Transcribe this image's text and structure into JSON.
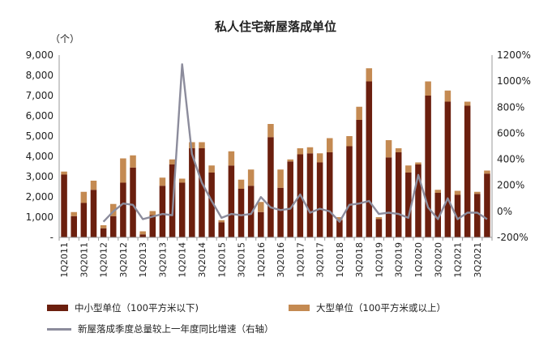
{
  "chart_data": {
    "type": "bar",
    "title": "私人住宅新屋落成单位",
    "y_unit": "（个）",
    "ylim": [
      0,
      9000
    ],
    "yticks": [
      "-",
      "1,000",
      "2,000",
      "3,000",
      "4,000",
      "5,000",
      "6,000",
      "7,000",
      "8,000",
      "9,000"
    ],
    "y2lim": [
      -200,
      1200
    ],
    "y2ticks": [
      "-200%",
      "0%",
      "200%",
      "400%",
      "600%",
      "800%",
      "1000%",
      "1200%"
    ],
    "x_tick_labels": [
      "1Q2011",
      "3Q2011",
      "1Q2012",
      "3Q2012",
      "1Q2013",
      "3Q2013",
      "1Q2014",
      "3Q2014",
      "1Q2015",
      "3Q2015",
      "1Q2016",
      "3Q2016",
      "1Q2017",
      "3Q2017",
      "1Q2018",
      "3Q2018",
      "1Q2019",
      "3Q2019",
      "1Q2020",
      "3Q2020",
      "1Q2021",
      "3Q2021"
    ],
    "categories": [
      "1Q2011",
      "2Q2011",
      "3Q2011",
      "4Q2011",
      "1Q2012",
      "2Q2012",
      "3Q2012",
      "4Q2012",
      "1Q2013",
      "2Q2013",
      "3Q2013",
      "4Q2013",
      "1Q2014",
      "2Q2014",
      "3Q2014",
      "4Q2014",
      "1Q2015",
      "2Q2015",
      "3Q2015",
      "4Q2015",
      "1Q2016",
      "2Q2016",
      "3Q2016",
      "4Q2016",
      "1Q2017",
      "2Q2017",
      "3Q2017",
      "4Q2017",
      "1Q2018",
      "2Q2018",
      "3Q2018",
      "4Q2018",
      "1Q2019",
      "2Q2019",
      "3Q2019",
      "4Q2019",
      "1Q2020",
      "2Q2020",
      "3Q2020",
      "4Q2020",
      "1Q2021",
      "2Q2021",
      "3Q2021",
      "4Q2021"
    ],
    "series": [
      {
        "name": "中小型单位（100平方米以下)",
        "type": "bar",
        "axis": "left",
        "color": "#6b1f0e",
        "values": [
          3100,
          1050,
          1700,
          2350,
          450,
          1050,
          2700,
          3450,
          150,
          1100,
          2550,
          3600,
          2700,
          4400,
          4400,
          3200,
          750,
          3550,
          2400,
          2550,
          1250,
          4950,
          2450,
          3750,
          4100,
          4150,
          3700,
          4200,
          850,
          4500,
          5800,
          7700,
          900,
          3950,
          4200,
          3200,
          3600,
          7000,
          2200,
          6700,
          2100,
          6500,
          2150,
          3150
        ]
      },
      {
        "name": "大型单位（100平方米或以上）",
        "type": "bar",
        "axis": "left",
        "color": "#c48a52",
        "values": [
          150,
          200,
          550,
          450,
          150,
          600,
          1200,
          600,
          150,
          200,
          400,
          250,
          200,
          300,
          300,
          350,
          100,
          700,
          450,
          800,
          500,
          650,
          900,
          100,
          300,
          300,
          450,
          700,
          150,
          500,
          650,
          650,
          100,
          850,
          200,
          350,
          100,
          700,
          150,
          550,
          200,
          200,
          100,
          150
        ]
      },
      {
        "name": "新屋落成季度总量较上一年度同比增速（右轴）",
        "type": "line",
        "axis": "right",
        "color": "#8c8c9c",
        "values": [
          null,
          null,
          null,
          null,
          -80,
          0,
          60,
          50,
          -60,
          -40,
          -20,
          -30,
          1130,
          440,
          220,
          80,
          -50,
          -20,
          -30,
          -20,
          110,
          30,
          10,
          20,
          130,
          -10,
          20,
          0,
          -80,
          50,
          60,
          80,
          -20,
          -10,
          -20,
          -50,
          280,
          30,
          -60,
          100,
          -60,
          -10,
          -10,
          -60
        ]
      }
    ]
  }
}
